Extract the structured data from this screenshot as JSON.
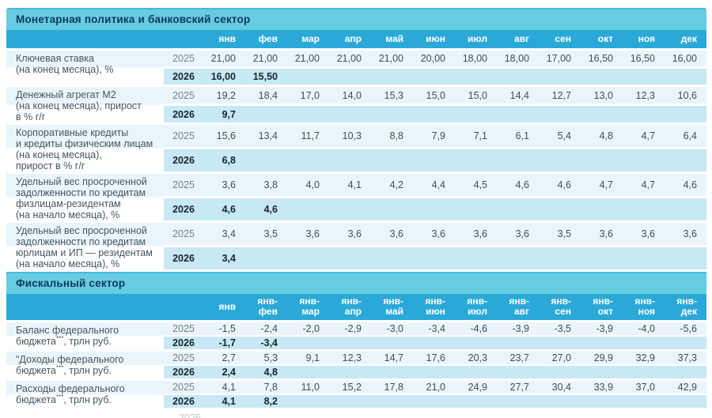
{
  "colors": {
    "section_band": "#67CBE2",
    "section_band_edge": "#47BAD8",
    "column_header_band": "#2AA9D8",
    "row_2025_bg": "#E9F5FB",
    "row_2026_bg": "#C7E8F4",
    "section_title_text": "#0D3A57",
    "value_2025_text": "#3E4E58",
    "year_2025_text": "#75828A",
    "bold_2026_text": "#17262F",
    "label_text": "#46565F"
  },
  "years": {
    "y2025": "2025",
    "y2026": "2026"
  },
  "monetary": {
    "title": "Монетарная политика и банковский сектор",
    "months": [
      "янв",
      "фев",
      "мар",
      "апр",
      "май",
      "июн",
      "июл",
      "авг",
      "сен",
      "окт",
      "ноя",
      "дек"
    ],
    "groups": [
      {
        "label": "Ключевая ставка\n(на конец месяца), %",
        "tall": false,
        "v25": [
          "21,00",
          "21,00",
          "21,00",
          "21,00",
          "21,00",
          "20,00",
          "18,00",
          "18,00",
          "17,00",
          "16,50",
          "16,50",
          "16,00"
        ],
        "v26": [
          "16,00",
          "15,50",
          "",
          "",
          "",
          "",
          "",
          "",
          "",
          "",
          "",
          ""
        ]
      },
      {
        "label": "Денежный агрегат М2\n(на конец месяца), прирост\nв % г/г",
        "tall": false,
        "v25": [
          "19,2",
          "18,4",
          "17,0",
          "14,0",
          "15,3",
          "15,0",
          "15,0",
          "14,4",
          "12,7",
          "13,0",
          "12,3",
          "10,6"
        ],
        "v26": [
          "9,7",
          "",
          "",
          "",
          "",
          "",
          "",
          "",
          "",
          "",
          "",
          ""
        ]
      },
      {
        "label": "Корпоративные кредиты\nи кредиты физическим лицам\n(на конец месяца),\nприрост в % г/г",
        "tall": true,
        "v25": [
          "15,6",
          "13,4",
          "11,7",
          "10,3",
          "8,8",
          "7,9",
          "7,1",
          "6,1",
          "5,4",
          "4,8",
          "4,7",
          "6,4"
        ],
        "v26": [
          "6,8",
          "",
          "",
          "",
          "",
          "",
          "",
          "",
          "",
          "",
          "",
          ""
        ]
      },
      {
        "label": "Удельный вес просроченной\nзадолженности по кредитам\nфизлицам-резидентам\n(на начало месяца), %",
        "tall": true,
        "v25": [
          "3,6",
          "3,8",
          "4,0",
          "4,1",
          "4,2",
          "4,4",
          "4,5",
          "4,6",
          "4,6",
          "4,7",
          "4,7",
          "4,6"
        ],
        "v26": [
          "4,6",
          "4,6",
          "",
          "",
          "",
          "",
          "",
          "",
          "",
          "",
          "",
          ""
        ]
      },
      {
        "label": "Удельный вес просроченной\nзадолженности по кредитам\nюрлицам и ИП — резидентам\n(на начало месяца), %",
        "tall": true,
        "v25": [
          "3,4",
          "3,5",
          "3,6",
          "3,6",
          "3,6",
          "3,6",
          "3,6",
          "3,6",
          "3,5",
          "3,6",
          "3,6",
          "3,6"
        ],
        "v26": [
          "3,4",
          "",
          "",
          "",
          "",
          "",
          "",
          "",
          "",
          "",
          "",
          ""
        ]
      }
    ]
  },
  "fiscal": {
    "title": "Фискальный сектор",
    "months": [
      [
        "",
        "янв"
      ],
      [
        "янв-",
        "фев"
      ],
      [
        "янв-",
        "мар"
      ],
      [
        "янв-",
        "апр"
      ],
      [
        "янв-",
        "май"
      ],
      [
        "янв-",
        "июн"
      ],
      [
        "янв-",
        "июл"
      ],
      [
        "янв-",
        "авг"
      ],
      [
        "янв-",
        "сен"
      ],
      [
        "янв-",
        "окт"
      ],
      [
        "янв-",
        "ноя"
      ],
      [
        "янв-",
        "дек"
      ]
    ],
    "groups": [
      {
        "label_pre": "Баланс федерального\nбюджета",
        "label_sup": "***",
        "label_post": ", трлн руб.",
        "v25": [
          "-1,5",
          "-2,4",
          "-2,0",
          "-2,9",
          "-3,0",
          "-3,4",
          "-4,6",
          "-3,9",
          "-3,5",
          "-3,9",
          "-4,0",
          "-5,6"
        ],
        "v26": [
          "-1,7",
          "-3,4",
          "",
          "",
          "",
          "",
          "",
          "",
          "",
          "",
          "",
          ""
        ]
      },
      {
        "label_pre": "\"Доходы федерального\nбюджета",
        "label_sup": "***",
        "label_post": ", трлн руб.",
        "v25": [
          "2,7",
          "5,3",
          "9,1",
          "12,3",
          "14,7",
          "17,6",
          "20,3",
          "23,7",
          "27,0",
          "29,9",
          "32,9",
          "37,3"
        ],
        "v26": [
          "2,4",
          "4,8",
          "",
          "",
          "",
          "",
          "",
          "",
          "",
          "",
          "",
          ""
        ]
      },
      {
        "label_pre": "Расходы федерального\nбюджета",
        "label_sup": "***",
        "label_post": ", трлн руб.",
        "v25": [
          "4,1",
          "7,8",
          "11,0",
          "15,2",
          "17,8",
          "21,0",
          "24,9",
          "27,7",
          "30,4",
          "33,9",
          "37,0",
          "42,9"
        ],
        "v26": [
          "4,1",
          "8,2",
          "",
          "",
          "",
          "",
          "",
          "",
          "",
          "",
          "",
          ""
        ]
      }
    ]
  },
  "partial_row": {
    "year": "2025"
  }
}
